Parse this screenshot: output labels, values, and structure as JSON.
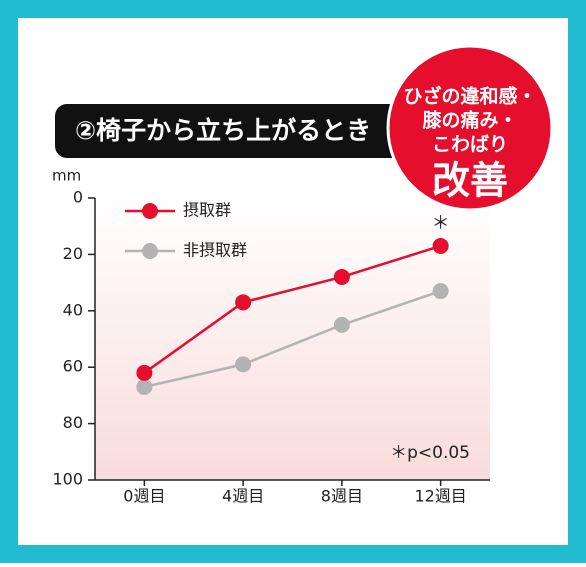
{
  "title_banner": "②椅子から立ち上がるとき",
  "badge": {
    "lines": [
      "ひざの違和感・",
      "膝の痛み・",
      "こわばり"
    ],
    "emphasis": "改善"
  },
  "chart_data": {
    "type": "line",
    "y_label": "mm",
    "categories": [
      "0週目",
      "4週目",
      "8週目",
      "12週目"
    ],
    "series": [
      {
        "name": "摂取群",
        "color": "#e60e2d",
        "values": [
          62,
          37,
          28,
          17
        ]
      },
      {
        "name": "非摂取群",
        "color": "#b3b3b3",
        "values": [
          67,
          59,
          45,
          33
        ]
      }
    ],
    "ylim": [
      0,
      100
    ],
    "yticks": [
      0,
      20,
      40,
      60,
      80,
      100
    ],
    "y_inverted": true,
    "significance_marker": "＊",
    "annotation": "＊p<0.05",
    "legend": "upper left"
  }
}
